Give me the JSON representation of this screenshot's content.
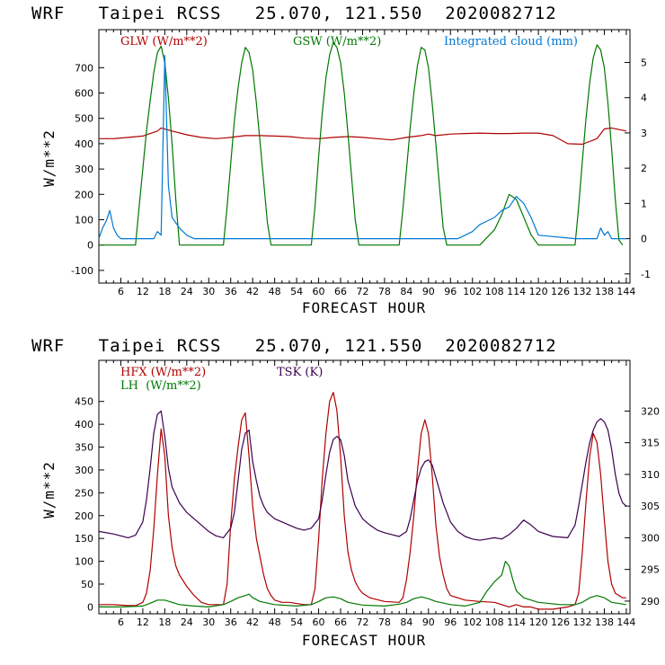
{
  "chart_data": [
    {
      "type": "line",
      "title": "WRF   Taipei RCSS   25.070, 121.550  2020082712",
      "xlabel": "FORECAST HOUR",
      "ylabel": "W/m**2",
      "xlim": [
        0,
        145
      ],
      "ylim": [
        -150,
        850
      ],
      "y2lim": [
        -1.26,
        5.93
      ],
      "xticks": [
        6,
        12,
        18,
        24,
        30,
        36,
        42,
        48,
        54,
        60,
        66,
        72,
        78,
        84,
        90,
        96,
        102,
        108,
        114,
        120,
        126,
        132,
        138,
        144
      ],
      "yticks": [
        -100,
        0,
        100,
        200,
        300,
        400,
        500,
        600,
        700
      ],
      "y2ticks": [
        -1,
        0,
        1,
        2,
        3,
        4,
        5
      ],
      "series": [
        {
          "name": "GLW (W/m**2)",
          "axis": "left",
          "color": "#b00000",
          "x": [
            0,
            4,
            8,
            12,
            16,
            17,
            20,
            24,
            28,
            32,
            36,
            40,
            44,
            48,
            52,
            56,
            60,
            64,
            68,
            72,
            76,
            80,
            84,
            88,
            90,
            92,
            96,
            100,
            104,
            108,
            112,
            116,
            120,
            124,
            128,
            132,
            136,
            138,
            140,
            144
          ],
          "y": [
            420,
            420,
            425,
            430,
            450,
            462,
            450,
            435,
            425,
            420,
            425,
            432,
            432,
            430,
            428,
            422,
            420,
            425,
            428,
            425,
            420,
            415,
            425,
            432,
            438,
            432,
            438,
            440,
            442,
            440,
            440,
            442,
            442,
            432,
            400,
            398,
            420,
            458,
            462,
            450
          ]
        },
        {
          "name": "GSW (W/m**2)",
          "axis": "left",
          "color": "#007800",
          "x": [
            0,
            10,
            11,
            12,
            13,
            14,
            15,
            16,
            17,
            18,
            19,
            20,
            21,
            22,
            34,
            35,
            36,
            37,
            38,
            39,
            40,
            41,
            42,
            43,
            44,
            45,
            46,
            47,
            58,
            59,
            60,
            61,
            62,
            63,
            64,
            65,
            66,
            67,
            68,
            69,
            70,
            71,
            82,
            83,
            84,
            85,
            86,
            87,
            88,
            89,
            90,
            91,
            92,
            93,
            94,
            95,
            104,
            106,
            108,
            110,
            112,
            114,
            116,
            118,
            120,
            130,
            131,
            132,
            133,
            134,
            135,
            136,
            137,
            138,
            139,
            140,
            141,
            142,
            143
          ],
          "y": [
            0,
            0,
            150,
            300,
            450,
            570,
            680,
            760,
            785,
            720,
            580,
            400,
            180,
            0,
            0,
            150,
            320,
            490,
            620,
            720,
            780,
            760,
            690,
            560,
            410,
            250,
            90,
            0,
            0,
            150,
            350,
            520,
            660,
            750,
            800,
            780,
            720,
            600,
            440,
            270,
            100,
            0,
            0,
            140,
            300,
            460,
            600,
            710,
            780,
            770,
            700,
            560,
            400,
            230,
            70,
            0,
            0,
            30,
            60,
            120,
            200,
            180,
            110,
            40,
            0,
            0,
            150,
            330,
            500,
            640,
            740,
            790,
            770,
            700,
            560,
            380,
            180,
            20,
            0
          ]
        },
        {
          "name": "Integrated cloud (mm)",
          "axis": "right",
          "color": "#0078d2",
          "x": [
            0,
            1,
            2,
            3,
            4,
            5,
            6,
            8,
            10,
            12,
            14,
            15,
            16,
            17,
            18,
            19,
            20,
            22,
            24,
            26,
            28,
            30,
            34,
            38,
            40,
            42,
            44,
            46,
            50,
            60,
            70,
            80,
            84,
            86,
            88,
            90,
            92,
            94,
            96,
            98,
            100,
            102,
            104,
            106,
            108,
            110,
            112,
            114,
            116,
            118,
            120,
            130,
            136,
            137,
            138,
            139,
            140,
            141,
            142,
            143,
            144
          ],
          "y": [
            0,
            0.3,
            0.5,
            0.8,
            0.3,
            0.1,
            0,
            0,
            0,
            0,
            0,
            0,
            0.2,
            0.1,
            5.2,
            1.5,
            0.6,
            0.3,
            0.1,
            0,
            0,
            0,
            0,
            0,
            0,
            0,
            0,
            0,
            0,
            0,
            0,
            0,
            0,
            0,
            0,
            0,
            0,
            0,
            0,
            0,
            0.1,
            0.2,
            0.4,
            0.5,
            0.6,
            0.8,
            0.9,
            1.2,
            1.0,
            0.6,
            0.1,
            0,
            0,
            0.3,
            0.1,
            0.2,
            0,
            0,
            0,
            0,
            0
          ]
        }
      ]
    },
    {
      "type": "line",
      "title": "WRF   Taipei RCSS   25.070, 121.550  2020082712",
      "xlabel": "FORECAST HOUR",
      "ylabel": "W/m**2",
      "xlim": [
        0,
        145
      ],
      "ylim": [
        -15,
        540
      ],
      "y2lim": [
        288,
        328
      ],
      "xticks": [
        6,
        12,
        18,
        24,
        30,
        36,
        42,
        48,
        54,
        60,
        66,
        72,
        78,
        84,
        90,
        96,
        102,
        108,
        114,
        120,
        126,
        132,
        138,
        144
      ],
      "yticks": [
        0,
        50,
        100,
        150,
        200,
        250,
        300,
        350,
        400,
        450
      ],
      "y2ticks": [
        290,
        295,
        300,
        305,
        310,
        315,
        320
      ],
      "series": [
        {
          "name": "HFX (W/m**2)",
          "axis": "left",
          "color": "#b00000",
          "x": [
            0,
            4,
            8,
            10,
            12,
            13,
            14,
            15,
            16,
            17,
            18,
            19,
            20,
            21,
            22,
            24,
            26,
            28,
            30,
            32,
            34,
            35,
            36,
            37,
            38,
            39,
            40,
            41,
            42,
            43,
            44,
            45,
            46,
            47,
            48,
            50,
            52,
            56,
            58,
            59,
            60,
            61,
            62,
            63,
            64,
            65,
            66,
            67,
            68,
            69,
            70,
            71,
            72,
            74,
            78,
            82,
            83,
            84,
            85,
            86,
            87,
            88,
            89,
            90,
            91,
            92,
            93,
            94,
            95,
            96,
            100,
            104,
            108,
            110,
            112,
            114,
            116,
            118,
            120,
            124,
            128,
            130,
            131,
            132,
            133,
            134,
            135,
            136,
            137,
            138,
            139,
            140,
            141,
            142,
            143,
            144
          ],
          "y": [
            5,
            5,
            3,
            3,
            10,
            30,
            80,
            170,
            290,
            390,
            330,
            200,
            130,
            90,
            70,
            45,
            25,
            10,
            5,
            5,
            5,
            50,
            180,
            280,
            350,
            410,
            425,
            330,
            220,
            150,
            110,
            70,
            40,
            25,
            15,
            10,
            10,
            5,
            5,
            40,
            150,
            280,
            380,
            450,
            470,
            430,
            330,
            200,
            120,
            80,
            55,
            40,
            30,
            20,
            12,
            10,
            20,
            60,
            120,
            200,
            300,
            380,
            410,
            380,
            290,
            180,
            110,
            70,
            40,
            25,
            15,
            12,
            10,
            5,
            0,
            5,
            0,
            0,
            -5,
            -5,
            0,
            5,
            30,
            120,
            230,
            330,
            380,
            360,
            290,
            190,
            100,
            50,
            30,
            25,
            20,
            20
          ]
        },
        {
          "name": "LH  (W/m**2)",
          "axis": "left",
          "color": "#007800",
          "x": [
            0,
            6,
            12,
            14,
            16,
            18,
            20,
            22,
            26,
            30,
            34,
            36,
            38,
            40,
            41,
            42,
            44,
            48,
            54,
            58,
            60,
            62,
            64,
            66,
            68,
            72,
            78,
            82,
            84,
            86,
            88,
            90,
            92,
            96,
            100,
            104,
            106,
            108,
            110,
            111,
            112,
            113,
            114,
            116,
            120,
            126,
            130,
            132,
            134,
            136,
            138,
            140,
            144
          ],
          "y": [
            0,
            0,
            2,
            8,
            15,
            15,
            10,
            5,
            2,
            0,
            5,
            12,
            20,
            25,
            28,
            20,
            12,
            5,
            2,
            5,
            12,
            20,
            22,
            18,
            10,
            4,
            2,
            6,
            10,
            18,
            22,
            18,
            12,
            5,
            2,
            10,
            35,
            55,
            70,
            100,
            90,
            60,
            35,
            20,
            10,
            5,
            5,
            10,
            20,
            25,
            20,
            10,
            5
          ]
        },
        {
          "name": "TSK (K)",
          "axis": "right",
          "color": "#3c004f",
          "x": [
            0,
            4,
            8,
            10,
            12,
            13,
            14,
            15,
            16,
            17,
            18,
            19,
            20,
            22,
            24,
            26,
            28,
            30,
            32,
            34,
            36,
            37,
            38,
            39,
            40,
            41,
            42,
            43,
            44,
            45,
            46,
            48,
            50,
            52,
            54,
            56,
            58,
            60,
            61,
            62,
            63,
            64,
            65,
            66,
            67,
            68,
            70,
            72,
            74,
            76,
            78,
            80,
            82,
            84,
            85,
            86,
            87,
            88,
            89,
            90,
            91,
            92,
            94,
            96,
            98,
            100,
            102,
            104,
            106,
            108,
            110,
            112,
            114,
            116,
            118,
            120,
            124,
            128,
            130,
            131,
            132,
            133,
            134,
            135,
            136,
            137,
            138,
            139,
            140,
            141,
            142,
            143,
            144
          ],
          "y": [
            301.0,
            300.6,
            300.0,
            300.4,
            302.5,
            306.0,
            311.0,
            316.5,
            319.5,
            320.0,
            316.0,
            311.0,
            308.0,
            305.5,
            304.0,
            303.0,
            302.0,
            301.0,
            300.3,
            300.0,
            301.5,
            304.0,
            309.0,
            314.0,
            316.5,
            317.0,
            312.0,
            309.0,
            306.5,
            305.0,
            304.0,
            303.0,
            302.5,
            302.0,
            301.5,
            301.2,
            301.5,
            303.0,
            306.0,
            310.0,
            313.5,
            315.5,
            316.0,
            315.5,
            313.0,
            309.0,
            305.0,
            303.0,
            302.0,
            301.2,
            300.8,
            300.5,
            300.2,
            301.0,
            303.0,
            306.0,
            309.0,
            311.0,
            312.0,
            312.3,
            311.5,
            309.5,
            305.5,
            302.5,
            301.0,
            300.2,
            299.8,
            299.6,
            299.8,
            300.0,
            299.8,
            300.5,
            301.5,
            302.8,
            302.0,
            301.0,
            300.2,
            300.0,
            302.0,
            305.0,
            308.5,
            312.0,
            315.0,
            317.0,
            318.3,
            318.8,
            318.3,
            317.0,
            314.0,
            310.0,
            307.0,
            305.5,
            305.0
          ]
        }
      ]
    }
  ],
  "panels": [
    {
      "title": "WRF   Taipei RCSS   25.070, 121.550  2020082712",
      "xlabel": "FORECAST HOUR",
      "ylabel": "W/m**2",
      "legend": [
        {
          "label": "GLW (W/m**2)",
          "color": "#b00000"
        },
        {
          "label": "GSW (W/m**2)",
          "color": "#007800"
        },
        {
          "label": "Integrated cloud (mm)",
          "color": "#0078d2"
        }
      ]
    },
    {
      "title": "WRF   Taipei RCSS   25.070, 121.550  2020082712",
      "xlabel": "FORECAST HOUR",
      "ylabel": "W/m**2",
      "legend": [
        {
          "label": "HFX (W/m**2)",
          "color": "#b00000"
        },
        {
          "label": "TSK (K)",
          "color": "#3c004f"
        },
        {
          "label": "LH  (W/m**2)",
          "color": "#007800"
        }
      ]
    }
  ]
}
